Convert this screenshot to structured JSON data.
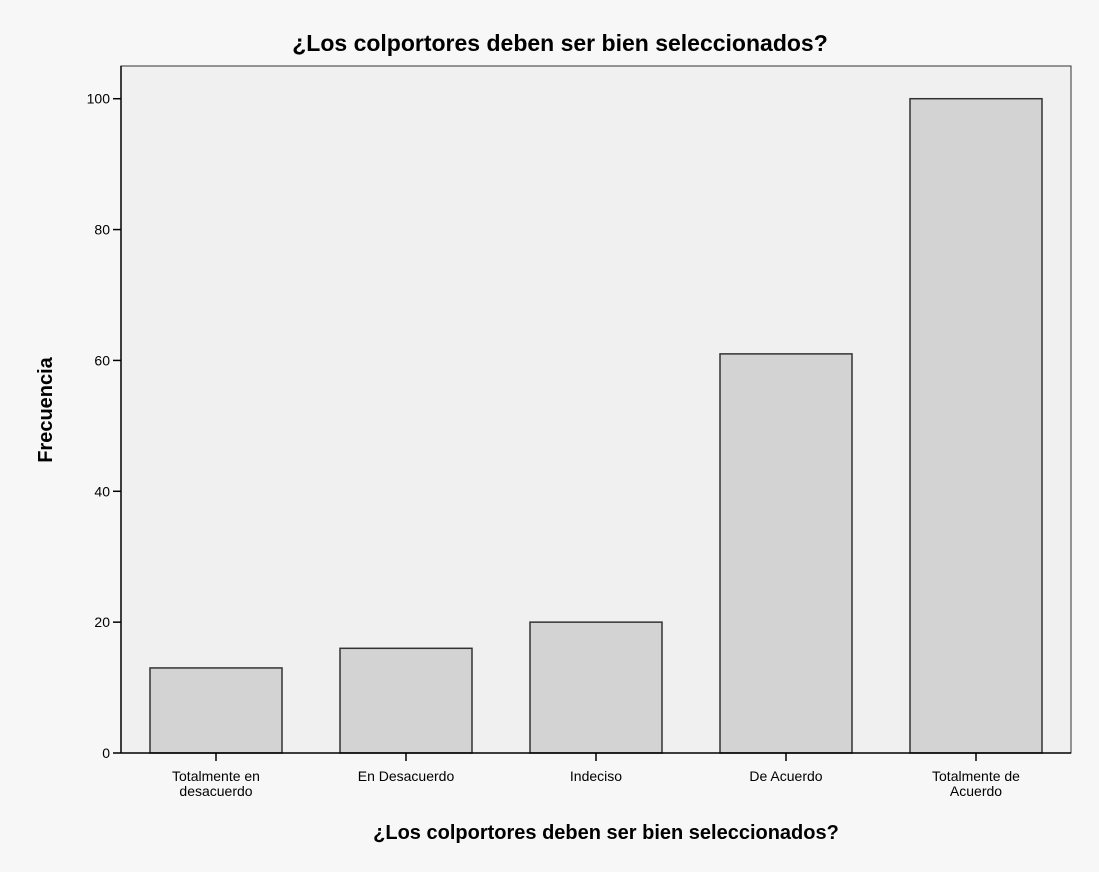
{
  "chart_data": {
    "type": "bar",
    "title": "¿Los colportores deben ser bien seleccionados?",
    "xlabel": "¿Los colportores deben ser bien seleccionados?",
    "ylabel": "Frecuencia",
    "categories": [
      [
        "Totalmente en",
        "desacuerdo"
      ],
      [
        "En Desacuerdo"
      ],
      [
        "Indeciso"
      ],
      [
        "De Acuerdo"
      ],
      [
        "Totalmente de",
        "Acuerdo"
      ]
    ],
    "values": [
      13,
      16,
      20,
      61,
      100
    ],
    "ylim": [
      0,
      105
    ],
    "yticks": [
      0,
      20,
      40,
      60,
      80,
      100
    ],
    "grid": false,
    "legend": "none",
    "colors": {
      "page_background": "#f7f7f7",
      "plot_background": "#f0f0f0",
      "bar_fill": "#d3d3d3",
      "bar_stroke": "#333333",
      "axis": "#000000"
    }
  }
}
